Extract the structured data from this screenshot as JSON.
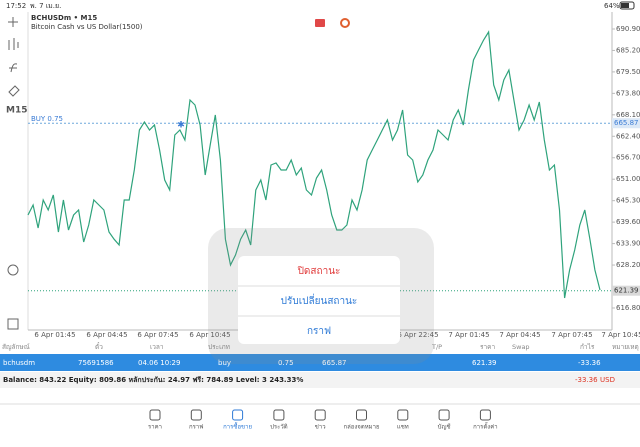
{
  "status": {
    "time": "17:52",
    "date": "พ. 7 เม.ย.",
    "battery": "64%"
  },
  "toolbar": {
    "timeframe": "M15"
  },
  "chart_data": {
    "type": "line",
    "title": "BCHUSDm • M15",
    "subtitle": "Bitcoin Cash vs US Dollar(1500)",
    "color": "#2fa37c",
    "x_labels": [
      "6 Apr 01:45",
      "6 Apr 04:45",
      "6 Apr 07:45",
      "6 Apr 10:45",
      "6 Apr 22:45",
      "7 Apr 01:45",
      "7 Apr 04:45",
      "7 Apr 07:45",
      "7 Apr 10:45"
    ],
    "values": [
      641.5,
      644.15,
      638.04,
      645.48,
      642.82,
      646.81,
      636.98,
      645.48,
      637.51,
      641.5,
      642.82,
      634.32,
      638.84,
      645.48,
      644.15,
      642.82,
      636.98,
      635.06,
      633.53,
      645.48,
      645.48,
      653.45,
      664.07,
      666.2,
      664.07,
      665.4,
      658.76,
      650.79,
      648.14,
      662.74,
      664.07,
      661.42,
      672.04,
      670.71,
      665.4,
      652.12,
      660.09,
      668.06,
      656.1,
      635.06,
      628.22,
      630.87,
      635.06,
      637.51,
      633.53,
      648.14,
      650.79,
      645.48,
      654.78,
      655.31,
      653.45,
      653.45,
      656.1,
      652.12,
      653.98,
      648.14,
      646.81,
      651.33,
      653.45,
      648.14,
      641.5,
      637.51,
      637.51,
      638.84,
      645.48,
      642.82,
      648.14,
      656.1,
      658.76,
      661.42,
      664.07,
      666.73,
      661.42,
      664.07,
      669.38,
      657.43,
      656.1,
      650.26,
      652.12,
      656.1,
      658.76,
      664.07,
      662.74,
      661.42,
      666.73,
      669.38,
      665.4,
      674.7,
      682.66,
      685.32,
      687.98,
      690.1,
      676.02,
      672.04,
      677.35,
      680.01,
      672.04,
      664.07,
      666.73,
      670.71,
      666.73,
      671.51,
      661.42,
      653.45,
      654.78,
      642.82,
      619.45,
      626.89,
      632.2,
      638.84,
      642.82,
      635.06,
      626.89,
      621.58
    ],
    "ylim": [
      610.95,
      695.41
    ],
    "yticks": [
      {
        "value": 690.9,
        "label": "690.90"
      },
      {
        "value": 685.2,
        "label": "685.20"
      },
      {
        "value": 679.5,
        "label": "679.50"
      },
      {
        "value": 673.8,
        "label": "673.80"
      },
      {
        "value": 668.1,
        "label": "668.10"
      },
      {
        "value": 662.4,
        "label": "662.40"
      },
      {
        "value": 656.7,
        "label": "656.70"
      },
      {
        "value": 651,
        "label": "651.00"
      },
      {
        "value": 645.3,
        "label": "645.30"
      },
      {
        "value": 639.6,
        "label": "639.60"
      },
      {
        "value": 633.9,
        "label": "633.90"
      },
      {
        "value": 628.2,
        "label": "628.20"
      },
      {
        "value": 616.8,
        "label": "616.80"
      }
    ],
    "buy_line": {
      "label": "BUY 0.75",
      "value": 665.87
    },
    "current_price": 621.39
  },
  "table": {
    "headers": [
      "สัญลักษณ์",
      "ตั๋ว",
      "เวลา",
      "ประเภท",
      "T/P",
      "ราคา",
      "Swap",
      "กำไร",
      "หมายเหตุ"
    ],
    "rows": [
      [
        "bchusdm",
        "75691586",
        "04.06 10:29",
        "buy",
        "0.75",
        "665.87",
        "621.39",
        "-33.36"
      ]
    ]
  },
  "balance": {
    "text": "Balance: 843.22 Equity: 809.86 หลักประกัน: 24.97 ฟรี: 784.89 Level: 3 243.33%",
    "profit": "-33.36",
    "currency": "USD"
  },
  "popup": {
    "items": [
      "ปิดสถานะ",
      "ปรับเปลี่ยนสถานะ",
      "กราฟ"
    ]
  },
  "tabs": [
    "ราคา",
    "กราฟ",
    "การซื้อขาย",
    "ประวัติ",
    "ข่าว",
    "กล่องจดหมาย",
    "แชท",
    "บัญชี",
    "การตั้งค่า"
  ]
}
